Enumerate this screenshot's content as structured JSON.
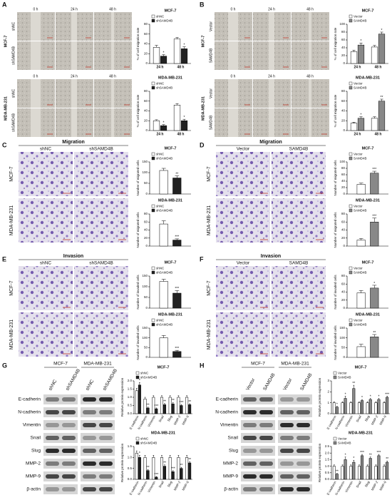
{
  "figure": {
    "panels": [
      {
        "letter": "A",
        "blocks": [
          {
            "cell_line": "MCF-7",
            "columns": [
              "0 h",
              "24 h",
              "48 h"
            ],
            "rows": [
              "shNC",
              "shSAMD4B"
            ]
          },
          {
            "cell_line": "MDA-MB-231",
            "columns": [
              "0 h",
              "24 h",
              "48 h"
            ],
            "rows": [
              "shNC",
              "shSAMD4B"
            ]
          }
        ]
      },
      {
        "letter": "B",
        "blocks": [
          {
            "cell_line": "MCF-7",
            "columns": [
              "0 h",
              "24 h",
              "48 h"
            ],
            "rows": [
              "Vector",
              "SAMD4B"
            ]
          },
          {
            "cell_line": "MDA-MB-231",
            "columns": [
              "0 h",
              "24 h",
              "48 h"
            ],
            "rows": [
              "Vector",
              "SAMD4B"
            ]
          }
        ]
      },
      {
        "letter": "C",
        "assay": "Migration",
        "columns": [
          "shNC",
          "shSAMD4B"
        ],
        "rows": [
          "MCF-7",
          "MDA-MB-231"
        ]
      },
      {
        "letter": "D",
        "assay": "Migration",
        "columns": [
          "Vector",
          "SAMD4B"
        ],
        "rows": [
          "MCF-7",
          "MDA-MB-231"
        ]
      },
      {
        "letter": "E",
        "assay": "Invasion",
        "columns": [
          "shNC",
          "shSAMD4B"
        ],
        "rows": [
          "MCF-7",
          "MDA-MB-231"
        ]
      },
      {
        "letter": "F",
        "assay": "Invasion",
        "columns": [
          "Vector",
          "SAMD4B"
        ],
        "rows": [
          "MCF-7",
          "MDA-MB-231"
        ]
      },
      {
        "letter": "G",
        "lane_groups": [
          "MCF-7",
          "MDA-MB-231"
        ],
        "lanes": [
          "shNC",
          "shSAMD4B",
          "shNC",
          "shSAMD4B"
        ],
        "proteins": [
          "E-cadherin",
          "N-cadherin",
          "Vimentin",
          "Snail",
          "Slug",
          "MMP-2",
          "MMP-9",
          "β-actin"
        ]
      },
      {
        "letter": "H",
        "lane_groups": [
          "MCF-7",
          "MDA-MB-231"
        ],
        "lanes": [
          "Vector",
          "SAMD4B",
          "Vector",
          "SAMD4B"
        ],
        "proteins": [
          "E-cadherin",
          "N-cadherin",
          "Vimentin",
          "Snail",
          "Slug",
          "MMP-2",
          "MMP-9",
          "β-actin"
        ]
      }
    ]
  },
  "chart_data": [
    {
      "type": "bar",
      "title": "MCF-7",
      "y_label": "% of cell migration rate",
      "categories": [
        "24 h",
        "48 h"
      ],
      "ylim": [
        0,
        80
      ],
      "yticks": [
        0,
        20,
        40,
        60,
        80
      ],
      "series": [
        {
          "name": "shNC",
          "color": "#ffffff",
          "values": [
            33,
            50
          ],
          "errors": [
            4,
            3
          ]
        },
        {
          "name": "shSAMD4B",
          "color": "#222222",
          "values": [
            15,
            30
          ],
          "errors": [
            3,
            4
          ],
          "significance": [
            "*",
            "*"
          ]
        }
      ]
    },
    {
      "type": "bar",
      "title": "MDA-MB-231",
      "y_label": "% of cell migration rate",
      "categories": [
        "24 h",
        "48 h"
      ],
      "ylim": [
        0,
        80
      ],
      "yticks": [
        0,
        20,
        40,
        60,
        80
      ],
      "series": [
        {
          "name": "shNC",
          "color": "#ffffff",
          "values": [
            20,
            52
          ],
          "errors": [
            2,
            3
          ]
        },
        {
          "name": "shSAMD4B",
          "color": "#222222",
          "values": [
            10,
            20
          ],
          "errors": [
            2,
            3
          ],
          "significance": [
            "*",
            "*"
          ]
        }
      ]
    },
    {
      "type": "bar",
      "title": "MCF-7",
      "y_label": "% of cell migration rate",
      "categories": [
        "24 h",
        "48 h"
      ],
      "ylim": [
        0,
        100
      ],
      "yticks": [
        0,
        20,
        40,
        60,
        80,
        100
      ],
      "series": [
        {
          "name": "Vector",
          "color": "#ffffff",
          "values": [
            30,
            42
          ],
          "errors": [
            4,
            4
          ]
        },
        {
          "name": "SAMD4B",
          "color": "#888888",
          "values": [
            47,
            75
          ],
          "errors": [
            5,
            5
          ],
          "significance": [
            "*",
            "*"
          ]
        }
      ]
    },
    {
      "type": "bar",
      "title": "MDA-MB-231",
      "y_label": "% of cell migration rate",
      "categories": [
        "24 h",
        "48 h"
      ],
      "ylim": [
        0,
        80
      ],
      "yticks": [
        0,
        20,
        40,
        60,
        80
      ],
      "series": [
        {
          "name": "Vector",
          "color": "#ffffff",
          "values": [
            15,
            25
          ],
          "errors": [
            2,
            3
          ]
        },
        {
          "name": "SAMD4B",
          "color": "#888888",
          "values": [
            25,
            60
          ],
          "errors": [
            3,
            4
          ],
          "significance": [
            "*",
            "**"
          ]
        }
      ]
    },
    {
      "type": "bar",
      "title": "MCF-7",
      "y_label": "Number of migrated cells",
      "ylim": [
        0,
        150
      ],
      "yticks": [
        0,
        50,
        100,
        150
      ],
      "series": [
        {
          "name": "shNC",
          "color": "#ffffff",
          "values": [
            110
          ],
          "errors": [
            10
          ]
        },
        {
          "name": "shSAMD4B",
          "color": "#222222",
          "values": [
            75
          ],
          "errors": [
            10
          ],
          "significance": [
            "**"
          ]
        }
      ]
    },
    {
      "type": "bar",
      "title": "MDA-MB-231",
      "y_label": "Number of migrated cells",
      "ylim": [
        0,
        80
      ],
      "yticks": [
        0,
        20,
        40,
        60,
        80
      ],
      "series": [
        {
          "name": "shNC",
          "color": "#ffffff",
          "values": [
            55
          ],
          "errors": [
            8
          ]
        },
        {
          "name": "shSAMD4B",
          "color": "#222222",
          "values": [
            15
          ],
          "errors": [
            3
          ],
          "significance": [
            "***"
          ]
        }
      ]
    },
    {
      "type": "bar",
      "title": "MCF-7",
      "y_label": "Number of migrated cells",
      "ylim": [
        0,
        100
      ],
      "yticks": [
        0,
        20,
        40,
        60,
        80,
        100
      ],
      "series": [
        {
          "name": "Vector",
          "color": "#ffffff",
          "values": [
            30
          ],
          "errors": [
            4
          ]
        },
        {
          "name": "SAMD4B",
          "color": "#888888",
          "values": [
            65
          ],
          "errors": [
            6
          ],
          "significance": [
            "***"
          ]
        }
      ]
    },
    {
      "type": "bar",
      "title": "MDA-MB-231",
      "y_label": "Number of migrated cells",
      "ylim": [
        0,
        80
      ],
      "yticks": [
        0,
        20,
        40,
        60,
        80
      ],
      "series": [
        {
          "name": "Vector",
          "color": "#ffffff",
          "values": [
            15
          ],
          "errors": [
            4
          ]
        },
        {
          "name": "SAMD4B",
          "color": "#888888",
          "values": [
            60
          ],
          "errors": [
            10
          ],
          "significance": [
            "***"
          ]
        }
      ]
    },
    {
      "type": "bar",
      "title": "MCF-7",
      "y_label": "Number of invaded cells",
      "ylim": [
        0,
        150
      ],
      "yticks": [
        0,
        50,
        100,
        150
      ],
      "series": [
        {
          "name": "shNC",
          "color": "#ffffff",
          "values": [
            125
          ],
          "errors": [
            10
          ]
        },
        {
          "name": "shSAMD4B",
          "color": "#222222",
          "values": [
            70
          ],
          "errors": [
            12
          ],
          "significance": [
            "***"
          ]
        }
      ]
    },
    {
      "type": "bar",
      "title": "MDA-MB-231",
      "y_label": "Number of invaded cells",
      "ylim": [
        0,
        150
      ],
      "yticks": [
        0,
        50,
        100,
        150
      ],
      "series": [
        {
          "name": "shNC",
          "color": "#ffffff",
          "values": [
            100
          ],
          "errors": [
            12
          ]
        },
        {
          "name": "shSAMD4B",
          "color": "#222222",
          "values": [
            30
          ],
          "errors": [
            6
          ],
          "significance": [
            "***"
          ]
        }
      ]
    },
    {
      "type": "bar",
      "title": "MCF-7",
      "y_label": "Number of invaded cells",
      "ylim": [
        0,
        80
      ],
      "yticks": [
        0,
        20,
        40,
        60,
        80
      ],
      "series": [
        {
          "name": "Vector",
          "color": "#ffffff",
          "values": [
            38
          ],
          "errors": [
            6
          ]
        },
        {
          "name": "SAMD4B",
          "color": "#888888",
          "values": [
            50
          ],
          "errors": [
            7
          ],
          "significance": [
            "*"
          ]
        }
      ]
    },
    {
      "type": "bar",
      "title": "MDA-MB-231",
      "y_label": "Number of invaded cells",
      "ylim": [
        0,
        150
      ],
      "yticks": [
        0,
        50,
        100,
        150
      ],
      "series": [
        {
          "name": "Vector",
          "color": "#ffffff",
          "values": [
            55
          ],
          "errors": [
            12
          ]
        },
        {
          "name": "SAMD4B",
          "color": "#888888",
          "values": [
            105
          ],
          "errors": [
            12
          ],
          "significance": [
            "**"
          ]
        }
      ]
    },
    {
      "type": "bar",
      "title": "MCF-7",
      "y_label": "Relative protein expression",
      "categories": [
        "E-cadherin",
        "N-cadherin",
        "Vimentin",
        "Snail",
        "Slug",
        "MMP-2",
        "MMP-9"
      ],
      "ylim": [
        0,
        2
      ],
      "yticks": [
        {
          "value": 0,
          "label": "0.0"
        },
        0.5,
        {
          "value": 1,
          "label": "1.0"
        },
        1.5,
        {
          "value": 2,
          "label": "2.0"
        }
      ],
      "series": [
        {
          "name": "shNC",
          "color": "#ffffff",
          "values": [
            1.4,
            0.9,
            1,
            1,
            1,
            1,
            1
          ],
          "errors": [
            0.15,
            0.1,
            0.1,
            0.1,
            0.1,
            0.1,
            0.1
          ]
        },
        {
          "name": "shSAMD4B",
          "color": "#222222",
          "values": [
            1.75,
            0.35,
            0.3,
            0.55,
            0.6,
            0.5,
            0.55
          ],
          "errors": [
            0.15,
            0.05,
            0.05,
            0.08,
            0.08,
            0.06,
            0.06
          ],
          "significance": [
            "*",
            "**",
            "***",
            "**",
            "**",
            "***",
            "**"
          ]
        }
      ]
    },
    {
      "type": "bar",
      "title": "MDA-MB-231",
      "y_label": "Relative protein expression",
      "categories": [
        "E-cadherin",
        "N-cadherin",
        "Vimentin",
        "Snail",
        "Slug",
        "MMP-2",
        "MMP-9"
      ],
      "ylim": [
        0,
        1.5
      ],
      "yticks": [
        {
          "value": 0,
          "label": "0.0"
        },
        0.5,
        {
          "value": 1,
          "label": "1.0"
        },
        1.5
      ],
      "series": [
        {
          "name": "shNC",
          "color": "#ffffff",
          "values": [
            1.2,
            1,
            1,
            1,
            1,
            1,
            1
          ],
          "errors": [
            0.1,
            0.1,
            0.1,
            0.1,
            0.1,
            0.1,
            0.1
          ]
        },
        {
          "name": "shSAMD4B",
          "color": "#222222",
          "values": [
            1,
            0.4,
            0.1,
            0.6,
            0.35,
            0.5,
            0.75
          ],
          "errors": [
            0.1,
            0.05,
            0.03,
            0.06,
            0.05,
            0.05,
            0.06
          ],
          "significance": [
            "*",
            "**",
            "***",
            "**",
            "***",
            "**",
            "**"
          ]
        }
      ]
    },
    {
      "type": "bar",
      "title": "MCF-7",
      "y_label": "Relative protein expression",
      "categories": [
        "E-cadherin",
        "N-cadherin",
        "Vimentin",
        "Snail",
        "Slug",
        "MMP-2",
        "MMP-9"
      ],
      "ylim": [
        0,
        3
      ],
      "yticks": [
        0,
        1,
        2,
        3
      ],
      "series": [
        {
          "name": "Vector",
          "color": "#ffffff",
          "values": [
            1,
            1,
            1,
            1,
            1,
            1,
            1
          ],
          "errors": [
            0.1,
            0.1,
            0.1,
            0.1,
            0.1,
            0.1,
            0.1
          ]
        },
        {
          "name": "SAMD4B",
          "color": "#888888",
          "values": [
            0.6,
            1.4,
            2.3,
            1.2,
            1.3,
            1.3,
            1.5
          ],
          "errors": [
            0.08,
            0.2,
            0.3,
            0.1,
            0.1,
            0.1,
            0.1
          ],
          "significance": [
            "*",
            "*",
            "**",
            "*",
            "*",
            "*",
            "***"
          ]
        }
      ]
    },
    {
      "type": "bar",
      "title": "MDA-MB-231",
      "y_label": "Relative protein expression",
      "categories": [
        "E-cadherin",
        "N-cadherin",
        "Vimentin",
        "Snail",
        "Slug",
        "MMP-2",
        "MMP-9"
      ],
      "ylim": [
        0,
        2.5
      ],
      "yticks": [
        {
          "value": 0,
          "label": "0.0"
        },
        0.5,
        {
          "value": 1,
          "label": "1.0"
        },
        1.5,
        {
          "value": 2,
          "label": "2.0"
        },
        2.5
      ],
      "series": [
        {
          "name": "Vector",
          "color": "#ffffff",
          "values": [
            1,
            1,
            1,
            1,
            1,
            1,
            1
          ],
          "errors": [
            0.1,
            0.1,
            0.1,
            0.1,
            0.1,
            0.1,
            0.1
          ]
        },
        {
          "name": "SAMD4B",
          "color": "#888888",
          "values": [
            0.4,
            1.5,
            1.3,
            1.8,
            1.6,
            1.8,
            1.3
          ],
          "errors": [
            0.05,
            0.2,
            0.15,
            0.1,
            0.1,
            0.1,
            0.1
          ],
          "significance": [
            "**",
            "*",
            "*",
            "***",
            "**",
            "***",
            "**"
          ]
        }
      ]
    }
  ]
}
